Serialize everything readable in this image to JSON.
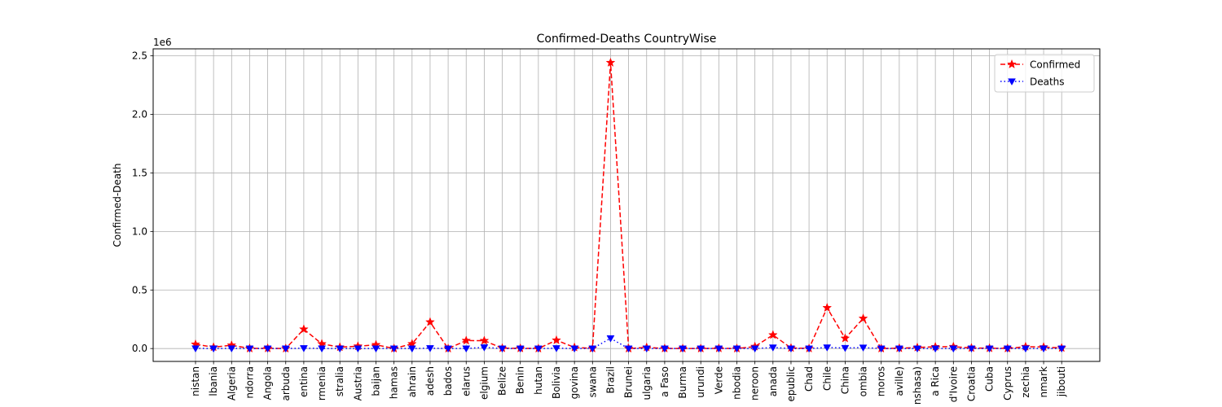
{
  "chart_data": {
    "type": "line",
    "title": "Confirmed-Deaths CountryWise",
    "xlabel": "",
    "ylabel": "Confirmed-Death",
    "y_offset_label": "1e6",
    "ylim": [
      -0.11,
      2.56
    ],
    "yticks": [
      0.0,
      0.5,
      1.0,
      1.5,
      2.0,
      2.5
    ],
    "ytick_labels": [
      "0.0",
      "0.5",
      "1.0",
      "1.5",
      "2.0",
      "2.5"
    ],
    "grid": true,
    "legend_position": "top-right",
    "categories": [
      "nistan",
      "lbania",
      "Algeria",
      "ndorra",
      "Angola",
      "arbuda",
      "entina",
      "rmenia",
      "stralia",
      "Austria",
      "baijan",
      "hamas",
      "ahrain",
      "adesh",
      "bados",
      "elarus",
      "elgium",
      "Belize",
      "Benin",
      "hutan",
      "Bolivia",
      "govina",
      "swana",
      "Brazil",
      "Brunei",
      "ulgaria",
      "a Faso",
      "Burma",
      "urundi",
      "Verde",
      "nbodia",
      "neroon",
      "anada",
      "epublic",
      "Chad",
      "Chile",
      "China",
      "ombia",
      "moros",
      "aville)",
      "nshasa)",
      "a Rica",
      "d'Ivoire",
      "Croatia",
      "Cuba",
      "Cyprus",
      "zechia",
      "nmark",
      "jibouti"
    ],
    "series": [
      {
        "name": "Confirmed",
        "color": "#ff0000",
        "marker": "star",
        "line_style": "dashed",
        "values": [
          0.036,
          0.012,
          0.028,
          0.001,
          0.002,
          0.0001,
          0.165,
          0.04,
          0.012,
          0.02,
          0.032,
          0.0004,
          0.04,
          0.226,
          0.0001,
          0.068,
          0.067,
          0.003,
          0.002,
          0.0001,
          0.071,
          0.01,
          0.001,
          2.442,
          0.0001,
          0.01,
          0.001,
          0.0003,
          0.0004,
          0.002,
          0.0002,
          0.017,
          0.116,
          0.005,
          0.0009,
          0.348,
          0.087,
          0.257,
          0.0003,
          0.003,
          0.009,
          0.015,
          0.016,
          0.005,
          0.003,
          0.001,
          0.016,
          0.013,
          0.005
        ]
      },
      {
        "name": "Deaths",
        "color": "#0000ff",
        "marker": "triangle-down",
        "line_style": "dotted",
        "values": [
          0.0012,
          0.0004,
          0.0012,
          0.0001,
          0.0001,
          0.0,
          0.003,
          0.0008,
          0.0002,
          0.0007,
          0.0004,
          0.0,
          0.0001,
          0.003,
          0.0,
          0.0005,
          0.0098,
          0.0,
          0.0,
          0.0,
          0.0027,
          0.0003,
          0.0,
          0.0875,
          0.0,
          0.0003,
          0.0001,
          0.0,
          0.0,
          0.0,
          0.0,
          0.0004,
          0.0089,
          0.0001,
          0.0001,
          0.0092,
          0.0047,
          0.0083,
          0.0,
          0.0001,
          0.0002,
          0.0002,
          0.0001,
          0.0001,
          0.0001,
          0.0,
          0.0004,
          0.0006,
          0.0001
        ]
      }
    ]
  }
}
